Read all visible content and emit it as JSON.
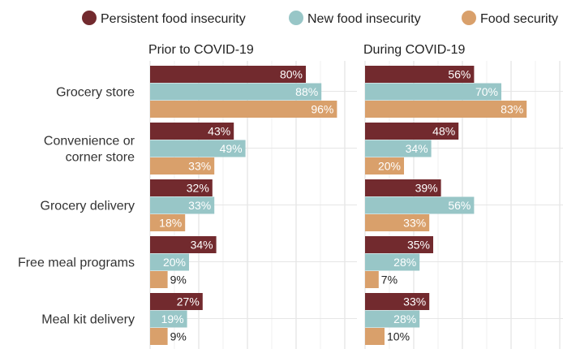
{
  "legend": [
    {
      "label": "Persistent food insecurity",
      "color": "#722a2e"
    },
    {
      "label": "New food insecurity",
      "color": "#98c6c7"
    },
    {
      "label": "Food security",
      "color": "#d9a06b"
    }
  ],
  "chart_data": [
    {
      "type": "bar",
      "orientation": "horizontal",
      "title": "Prior to COVID-19",
      "categories": [
        "Grocery store",
        "Convenience or corner store",
        "Grocery delivery",
        "Free meal programs",
        "Meal kit delivery"
      ],
      "series": [
        {
          "name": "Persistent food insecurity",
          "values": [
            80,
            43,
            32,
            34,
            27
          ]
        },
        {
          "name": "New food insecurity",
          "values": [
            88,
            49,
            33,
            20,
            19
          ]
        },
        {
          "name": "Food security",
          "values": [
            96,
            33,
            18,
            9,
            9
          ]
        }
      ],
      "value_unit": "%",
      "xlim": [
        0,
        100
      ],
      "grid": true
    },
    {
      "type": "bar",
      "orientation": "horizontal",
      "title": "During COVID-19",
      "categories": [
        "Grocery store",
        "Convenience or corner store",
        "Grocery delivery",
        "Free meal programs",
        "Meal kit delivery"
      ],
      "series": [
        {
          "name": "Persistent food insecurity",
          "values": [
            56,
            48,
            39,
            35,
            33
          ]
        },
        {
          "name": "New food insecurity",
          "values": [
            70,
            34,
            56,
            28,
            28
          ]
        },
        {
          "name": "Food security",
          "values": [
            83,
            20,
            33,
            7,
            10
          ]
        }
      ],
      "value_unit": "%",
      "xlim": [
        0,
        100
      ],
      "grid": true
    }
  ],
  "category_display": [
    [
      "Grocery store"
    ],
    [
      "Convenience or",
      "corner store"
    ],
    [
      "Grocery delivery"
    ],
    [
      "Free meal programs"
    ],
    [
      "Meal kit delivery"
    ]
  ]
}
